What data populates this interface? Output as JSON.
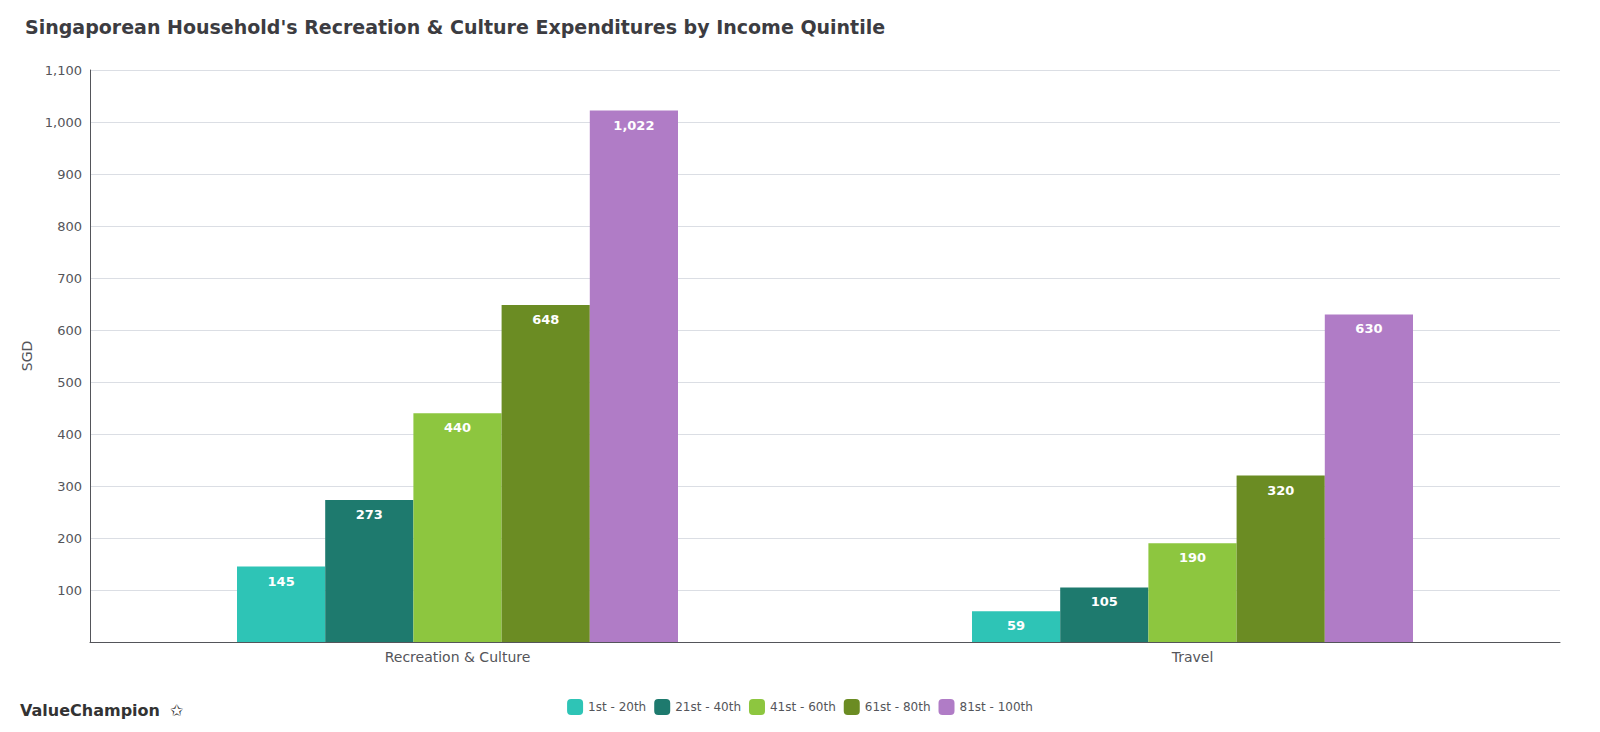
{
  "chart_data": {
    "type": "bar",
    "title": "Singaporean Household's Recreation & Culture Expenditures by Income Quintile",
    "ylabel": "SGD",
    "categories": [
      "Recreation & Culture",
      "Travel"
    ],
    "series": [
      {
        "name": "1st - 20th",
        "color": "#2ec4b6",
        "values": [
          145,
          59
        ]
      },
      {
        "name": "21st - 40th",
        "color": "#1e7a6e",
        "values": [
          273,
          105
        ]
      },
      {
        "name": "41st - 60th",
        "color": "#8dc63f",
        "values": [
          440,
          190
        ]
      },
      {
        "name": "61st - 80th",
        "color": "#6b8c23",
        "values": [
          648,
          320
        ]
      },
      {
        "name": "81st - 100th",
        "color": "#b07cc6",
        "values": [
          1022,
          630
        ],
        "value_labels": [
          "1,022",
          "630"
        ]
      }
    ],
    "ylim": [
      0,
      1100
    ],
    "yticks": [
      {
        "value": 0,
        "label": ""
      },
      100,
      200,
      300,
      400,
      500,
      600,
      700,
      800,
      900,
      {
        "value": 1000,
        "label": "1,000"
      },
      {
        "value": 1100,
        "label": "1,100"
      }
    ],
    "grid": true,
    "legend": "bottom",
    "data_labels": true,
    "annotations": [
      "ValueChampion",
      "✩"
    ]
  }
}
